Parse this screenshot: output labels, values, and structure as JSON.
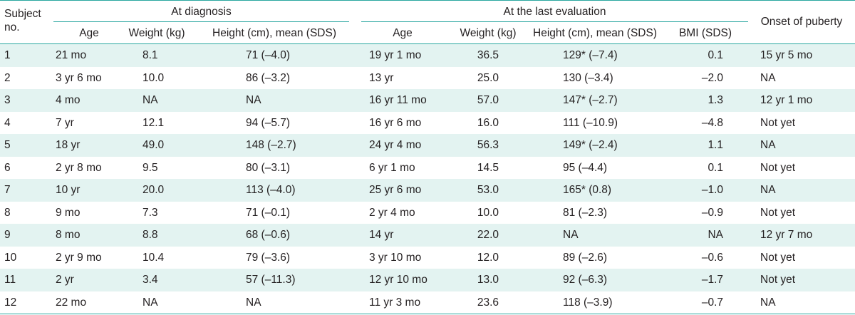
{
  "headers": {
    "subject_no": "Subject\nno.",
    "at_diagnosis": "At diagnosis",
    "at_last_evaluation": "At the last evaluation",
    "onset_of_puberty": "Onset of puberty",
    "diag_age": "Age",
    "diag_weight": "Weight (kg)",
    "diag_height": "Height (cm), mean (SDS)",
    "last_age": "Age",
    "last_weight": "Weight (kg)",
    "last_height": "Height (cm), mean (SDS)",
    "last_bmi": "BMI (SDS)"
  },
  "rows": [
    [
      "1",
      "21 mo",
      "8.1",
      "71 (–4.0)",
      "19 yr 1 mo",
      "36.5",
      "129* (–7.4)",
      "0.1",
      "15 yr 5 mo"
    ],
    [
      "2",
      "3 yr 6 mo",
      "10.0",
      "86 (–3.2)",
      "13 yr",
      "25.0",
      "130 (–3.4)",
      "–2.0",
      "NA"
    ],
    [
      "3",
      "4 mo",
      "NA",
      "NA",
      "16 yr 11 mo",
      "57.0",
      "147* (–2.7)",
      "1.3",
      "12 yr 1 mo"
    ],
    [
      "4",
      "7 yr",
      "12.1",
      "94 (–5.7)",
      "16 yr 6 mo",
      "16.0",
      "111 (–10.9)",
      "–4.8",
      "Not yet"
    ],
    [
      "5",
      "18 yr",
      "49.0",
      "148 (–2.7)",
      "24 yr 4 mo",
      "56.3",
      "149* (–2.4)",
      "1.1",
      "NA"
    ],
    [
      "6",
      "2 yr 8 mo",
      "9.5",
      "80 (–3.1)",
      "6 yr 1 mo",
      "14.5",
      "95 (–4.4)",
      "0.1",
      "Not yet"
    ],
    [
      "7",
      "10 yr",
      "20.0",
      "113 (–4.0)",
      "25 yr 6 mo",
      "53.0",
      "165* (0.8)",
      "–1.0",
      "NA"
    ],
    [
      "8",
      "9 mo",
      "7.3",
      "71 (–0.1)",
      "2 yr 4 mo",
      "10.0",
      "81 (–2.3)",
      "–0.9",
      "Not yet"
    ],
    [
      "9",
      "8 mo",
      "8.8",
      "68 (–0.6)",
      "14 yr",
      "22.0",
      "NA",
      "NA",
      "12 yr 7 mo"
    ],
    [
      "10",
      "2 yr 9 mo",
      "10.4",
      "79 (–3.6)",
      "3 yr 10 mo",
      "12.0",
      "89 (–2.6)",
      "–0.6",
      "Not yet"
    ],
    [
      "11",
      "2 yr",
      "3.4",
      "57 (–11.3)",
      "12 yr 10 mo",
      "13.0",
      "92 (–6.3)",
      "–1.7",
      "Not yet"
    ],
    [
      "12",
      "22 mo",
      "NA",
      "NA",
      "11 yr 3 mo",
      "23.6",
      "118 (–3.9)",
      "–0.7",
      "NA"
    ]
  ],
  "colors": {
    "rule": "#2aa7a0",
    "band": "#e3f3f1",
    "text": "#231f20"
  }
}
